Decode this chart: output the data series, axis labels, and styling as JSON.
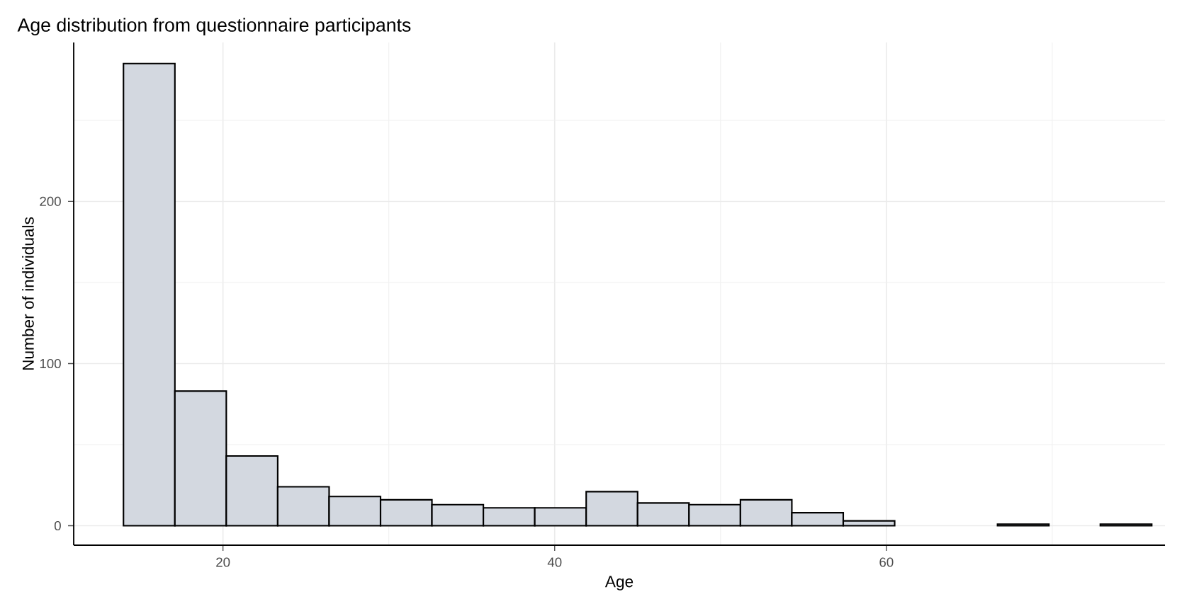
{
  "chart_data": {
    "type": "histogram",
    "title": "Age distribution from questionnaire participants",
    "xlabel": "Age",
    "ylabel": "Number of individuals",
    "bins": [
      14,
      17.1,
      20.2,
      23.3,
      26.4,
      29.5,
      32.6,
      35.7,
      38.8,
      41.9,
      45,
      48.1,
      51.2,
      54.3,
      57.4,
      60.5,
      63.6,
      66.7,
      69.8,
      72.9,
      76
    ],
    "values": [
      285,
      83,
      43,
      24,
      18,
      16,
      13,
      11,
      11,
      21,
      14,
      13,
      16,
      8,
      3,
      0,
      0,
      1,
      0,
      1
    ],
    "color": "#d3d8e0",
    "xlim": [
      11,
      76.8
    ],
    "ylim": [
      -12,
      298
    ],
    "xticks": [
      20,
      {
        "value": 30,
        "label": null
      },
      40,
      {
        "value": 50,
        "label": null
      },
      60,
      {
        "value": 70,
        "label": null
      }
    ],
    "yticks": [
      0,
      {
        "value": 50,
        "label": null
      },
      100,
      {
        "value": 150,
        "label": null
      },
      200,
      {
        "value": 250,
        "label": null
      }
    ],
    "grid": true
  }
}
